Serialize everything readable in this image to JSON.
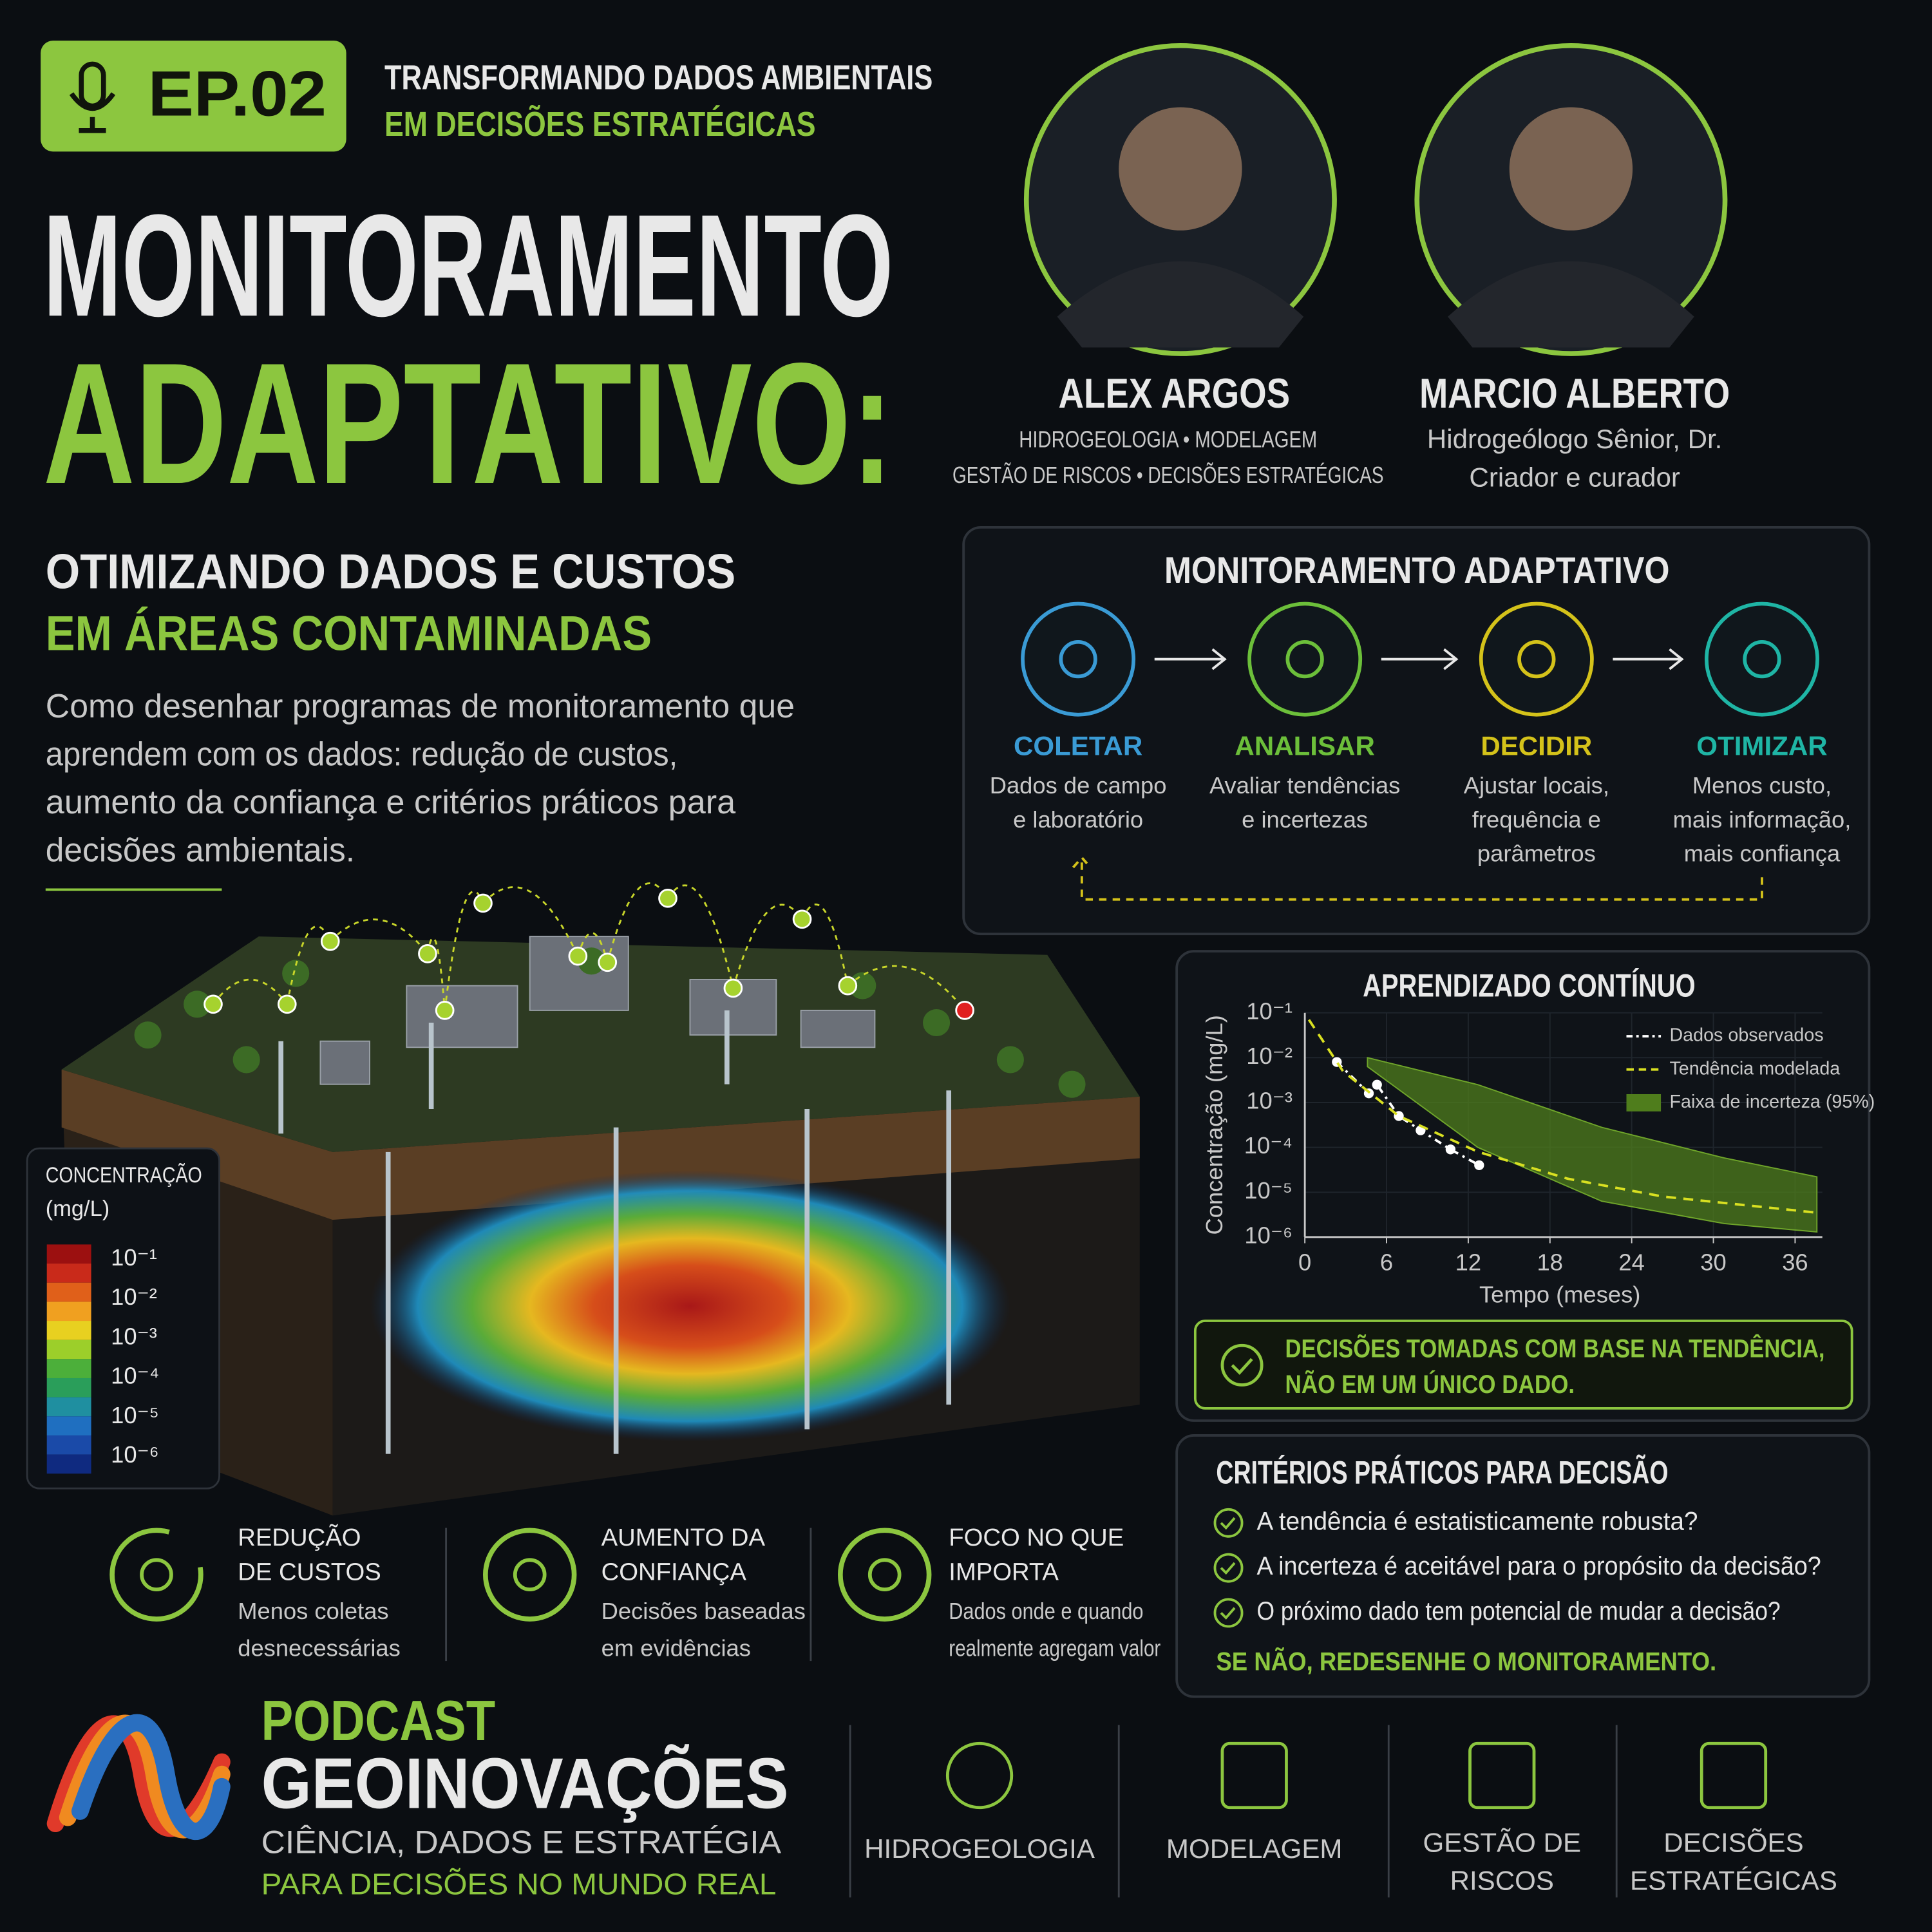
{
  "header": {
    "episode": "EP.02",
    "episode_title": [
      "TRANSFORMANDO DADOS AMBIENTAIS",
      "EM DECISÕES ESTRATÉGICAS"
    ]
  },
  "title": [
    "MONITORAMENTO",
    "ADAPTATIVO:"
  ],
  "subtitle": [
    "OTIMIZANDO DADOS E CUSTOS",
    "EM ÁREAS CONTAMINADAS"
  ],
  "description": [
    "Como desenhar programas de monitoramento que",
    "aprendem com os dados: redução de custos,",
    "aumento da confiança e critérios práticos para",
    "decisões ambientais."
  ],
  "hosts": [
    {
      "name": "ALEX ARGOS",
      "roles": [
        "HIDROGEOLOGIA • MODELAGEM",
        "GESTÃO DE RISCOS • DECISÕES ESTRATÉGICAS"
      ]
    },
    {
      "name": "MARCIO ALBERTO",
      "roles": [
        "Hidrogeólogo Sênior, Dr.",
        "Criador e curador"
      ]
    }
  ],
  "process": {
    "title": "MONITORAMENTO ADAPTATIVO",
    "steps": [
      {
        "label": "COLETAR",
        "text": [
          "Dados de campo",
          "e laboratório"
        ]
      },
      {
        "label": "ANALISAR",
        "text": [
          "Avaliar tendências",
          "e incertezas"
        ]
      },
      {
        "label": "DECIDIR",
        "text": [
          "Ajustar locais,",
          "frequência e",
          "parâmetros"
        ]
      },
      {
        "label": "OTIMIZAR",
        "text": [
          "Menos custo,",
          "mais informação,",
          "mais confiança"
        ]
      }
    ]
  },
  "chart_data": {
    "type": "line",
    "title": "APRENDIZADO CONTÍNUO",
    "x_label": "Tempo (meses)",
    "y_label": "Concentração (mg/L)",
    "log_y": true,
    "grid": true,
    "xlim": [
      0,
      38
    ],
    "xticks": [
      0,
      6,
      12,
      18,
      24,
      30,
      36
    ],
    "ylim": [
      1e-06,
      0.1
    ],
    "yticks": [
      {
        "value": 0.1,
        "label": "10⁻¹"
      },
      {
        "value": 0.01,
        "label": "10⁻²"
      },
      {
        "value": 0.001,
        "label": "10⁻³"
      },
      {
        "value": 0.0001,
        "label": "10⁻⁴"
      },
      {
        "value": 1e-05,
        "label": "10⁻⁵"
      },
      {
        "value": 1e-06,
        "label": "10⁻⁶"
      }
    ],
    "series": [
      {
        "name": "Dados observados",
        "color": "#ffffff",
        "style": "dash-dot",
        "x": [
          2.35,
          4.7,
          5.3,
          6.9,
          8.5,
          10.7,
          12.8
        ],
        "values": [
          0.008,
          0.0016,
          0.0025,
          0.0005,
          0.00024,
          9e-05,
          4e-05
        ]
      },
      {
        "name": "Tendência modelada",
        "color": "#d9e021",
        "style": "dashed",
        "x": [
          0.3,
          2.8,
          6.9,
          12.7,
          19.3,
          26.3,
          37.6
        ],
        "values": [
          0.07,
          0.005,
          0.0005,
          8e-05,
          2e-05,
          8e-06,
          3.5e-06
        ]
      },
      {
        "name": "Faixa de incerteza (95%)",
        "color": "#4f7d1c",
        "style": "band",
        "x": [
          4.6,
          12.7,
          21.8,
          30.8,
          37.6
        ],
        "values": [
          0.01,
          0.0025,
          0.00028,
          5.8e-05,
          2.2e-05
        ],
        "lower": [
          0.0063,
          0.0001,
          6.3e-06,
          2e-06,
          1.3e-06
        ]
      }
    ]
  },
  "chart_note": [
    "DECISÕES TOMADAS COM BASE NA TENDÊNCIA,",
    "NÃO EM UM ÚNICO DADO."
  ],
  "criteria": {
    "title": "CRITÉRIOS PRÁTICOS PARA DECISÃO",
    "items": [
      "A tendência é estatisticamente robusta?",
      "A incerteza é aceitável para o propósito da decisão?",
      "O próximo dado tem potencial de mudar a decisão?"
    ],
    "conclusion": "SE NÃO, REDESENHE O MONITORAMENTO."
  },
  "concentration_scale": {
    "title": [
      "CONCENTRAÇÃO",
      "(mg/L)"
    ],
    "labels": [
      "10⁻¹",
      "10⁻²",
      "10⁻³",
      "10⁻⁴",
      "10⁻⁵",
      "10⁻⁶"
    ]
  },
  "benefits": [
    {
      "title": [
        "REDUÇÃO",
        "DE CUSTOS"
      ],
      "text": [
        "Menos coletas",
        "desnecessárias"
      ]
    },
    {
      "title": [
        "AUMENTO DA",
        "CONFIANÇA"
      ],
      "text": [
        "Decisões baseadas",
        "em evidências"
      ]
    },
    {
      "title": [
        "FOCO NO QUE",
        "IMPORTA"
      ],
      "text": [
        "Dados onde e quando",
        "realmente agregam valor"
      ]
    }
  ],
  "brand": {
    "name": [
      "PODCAST",
      "GEOINOVAÇÕES"
    ],
    "tagline": [
      "CIÊNCIA, DADOS E ESTRATÉGIA",
      "PARA DECISÕES NO MUNDO REAL"
    ]
  },
  "topics": [
    [
      "HIDROGEOLOGIA"
    ],
    [
      "MODELAGEM"
    ],
    [
      "GESTÃO DE",
      "RISCOS"
    ],
    [
      "DECISÕES",
      "ESTRATÉGICAS"
    ]
  ]
}
